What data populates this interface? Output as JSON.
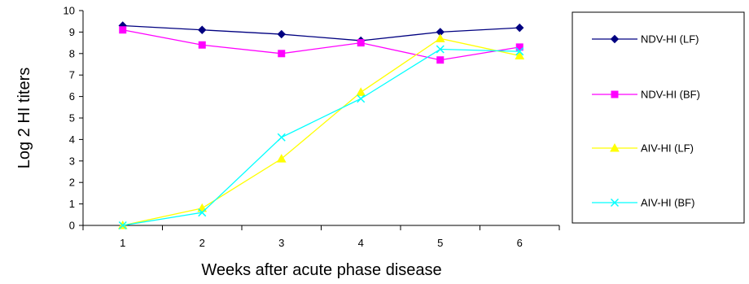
{
  "chart_data": {
    "type": "line",
    "title": "",
    "xlabel": "Weeks after acute phase disease",
    "ylabel": "Log 2  HI  titers",
    "x": [
      1,
      2,
      3,
      4,
      5,
      6
    ],
    "x_tick_labels": [
      "1",
      "2",
      "3",
      "4",
      "5",
      "6"
    ],
    "ylim": [
      0,
      10
    ],
    "y_ticks": [
      0,
      1,
      2,
      3,
      4,
      5,
      6,
      7,
      8,
      9,
      10
    ],
    "grid": false,
    "legend_position": "right",
    "series": [
      {
        "name": "NDV-HI (LF)",
        "color": "#000080",
        "marker": "diamond",
        "values": [
          9.3,
          9.1,
          8.9,
          8.6,
          9.0,
          9.2
        ]
      },
      {
        "name": "NDV-HI (BF)",
        "color": "#FF00FF",
        "marker": "square",
        "values": [
          9.1,
          8.4,
          8.0,
          8.5,
          7.7,
          8.3
        ]
      },
      {
        "name": "AIV-HI (LF)",
        "color": "#FFFF00",
        "marker": "triangle",
        "values": [
          0.0,
          0.8,
          3.1,
          6.2,
          8.7,
          7.9
        ]
      },
      {
        "name": "AIV-HI (BF)",
        "color": "#00FFFF",
        "marker": "x",
        "values": [
          0.0,
          0.6,
          4.1,
          5.9,
          8.2,
          8.1
        ]
      }
    ]
  }
}
